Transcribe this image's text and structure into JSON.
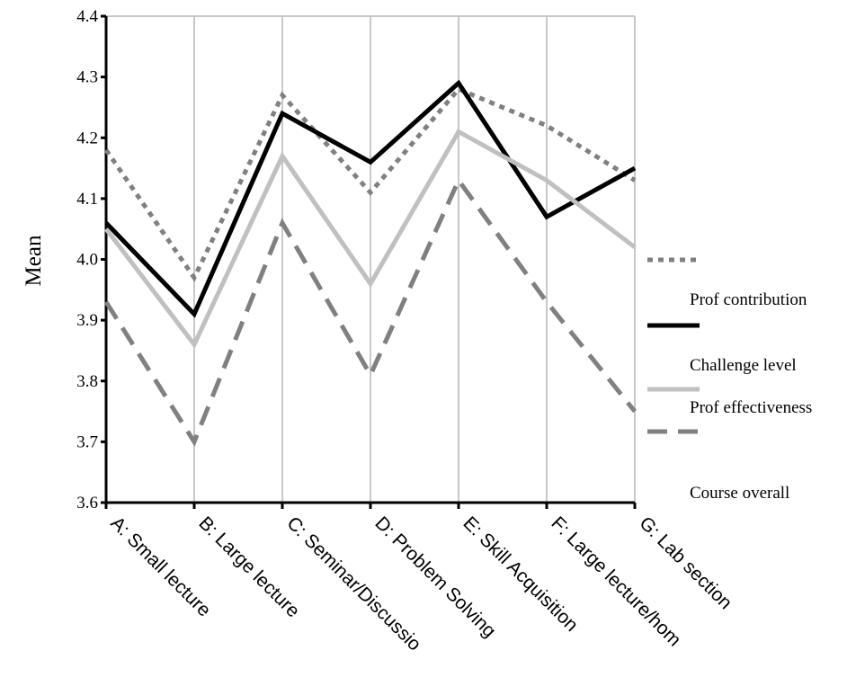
{
  "chart_data": {
    "type": "line",
    "title": "",
    "xlabel": "",
    "ylabel": "Mean",
    "ylim": [
      3.6,
      4.4
    ],
    "yticks": [
      "3.6",
      "3.7",
      "3.8",
      "3.9",
      "4.0",
      "4.1",
      "4.2",
      "4.3",
      "4.4"
    ],
    "grid": "vertical",
    "legend_position": "right",
    "categories": [
      "A: Small lecture",
      "B: Large lecture",
      "C: Seminar/Discussio",
      "D: Problem Solving",
      "E: Skill Acquisition",
      "F: Large lecture/hom",
      "G: Lab section"
    ],
    "series": [
      {
        "name": "Prof contribution",
        "style": "dotted",
        "color": "#808080",
        "values": [
          4.18,
          3.97,
          4.27,
          4.11,
          4.28,
          4.22,
          4.13
        ]
      },
      {
        "name": "Challenge level",
        "style": "solid",
        "color": "#000000",
        "values": [
          4.06,
          3.91,
          4.24,
          4.16,
          4.29,
          4.07,
          4.15
        ]
      },
      {
        "name": "Prof effectiveness",
        "style": "solid",
        "color": "#c0c0c0",
        "values": [
          4.05,
          3.86,
          4.17,
          3.96,
          4.21,
          4.13,
          4.02
        ]
      },
      {
        "name": "Course overall",
        "style": "dashed",
        "color": "#808080",
        "values": [
          3.93,
          3.7,
          4.06,
          3.81,
          4.13,
          3.93,
          3.75
        ]
      }
    ]
  }
}
